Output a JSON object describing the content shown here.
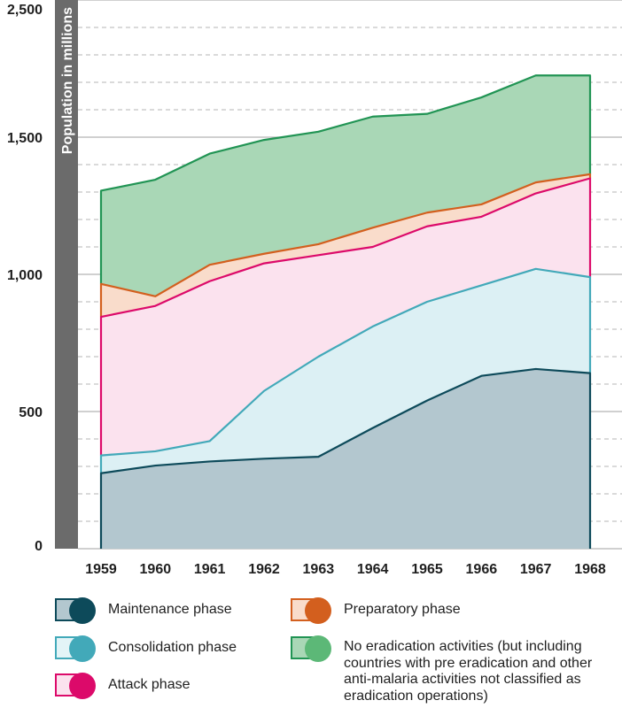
{
  "chart_data": {
    "type": "area",
    "ylabel": "Population in millions",
    "xlabel": "",
    "categories": [
      "1959",
      "1960",
      "1961",
      "1962",
      "1963",
      "1964",
      "1965",
      "1966",
      "1967",
      "1968"
    ],
    "yticks": [
      {
        "value": 0,
        "label": "0"
      },
      {
        "value": 500,
        "label": "500"
      },
      {
        "value": 1000,
        "label": "1,000"
      },
      {
        "value": 1500,
        "label": "1,500"
      },
      {
        "value": 2500,
        "label": "2,500"
      }
    ],
    "ylim": [
      0,
      2000
    ],
    "grid": true,
    "stacked_cumulative": true,
    "series": [
      {
        "name": "Maintenance phase",
        "key": "maintenance",
        "values": [
          275,
          303,
          318,
          328,
          335,
          440,
          540,
          630,
          655,
          640
        ],
        "line": "#0d4a5a",
        "fill": "#b3c7cf",
        "swatch_fill": "#b3c7cf",
        "dot": "#0d4a5a"
      },
      {
        "name": "Consolidation phase",
        "key": "consolidation",
        "values": [
          340,
          355,
          392,
          575,
          700,
          810,
          900,
          960,
          1020,
          990
        ],
        "line": "#42a9b9",
        "fill": "#dcf0f4",
        "swatch_fill": "#e3f4f7",
        "dot": "#42a9b9"
      },
      {
        "name": "Attack phase",
        "key": "attack",
        "values": [
          845,
          885,
          975,
          1040,
          1070,
          1100,
          1175,
          1210,
          1295,
          1350
        ],
        "line": "#dc0a6a",
        "fill": "#fbe2ee",
        "swatch_fill": "#fbe2ee",
        "dot": "#dc0a6a"
      },
      {
        "name": "Preparatory phase",
        "key": "preparatory",
        "values": [
          965,
          920,
          1035,
          1075,
          1110,
          1170,
          1225,
          1255,
          1335,
          1365
        ],
        "line": "#d35f1e",
        "fill": "#f9dccb",
        "swatch_fill": "#f9dccb",
        "dot": "#d35f1e"
      },
      {
        "name": "No eradication activities (but including countries with pre eradication and other anti-malaria activities not classified as eradication operations)",
        "key": "none",
        "values": [
          1305,
          1345,
          1440,
          1490,
          1520,
          1575,
          1585,
          1645,
          1725,
          1725
        ],
        "line": "#219454",
        "fill": "#a9d7b6",
        "swatch_fill": "#a9d7b6",
        "dot": "#5cb877"
      }
    ]
  },
  "legend": {
    "maintenance": "Maintenance phase",
    "consolidation": "Consolidation phase",
    "attack": "Attack phase",
    "preparatory": "Preparatory phase",
    "none_lines": [
      "No eradication activities (but including",
      "countries with pre eradication and other",
      "anti-malaria activities not classified as",
      "eradication operations)"
    ]
  },
  "colors": {
    "gridline": "#b5b5b5",
    "axis_band": "#6b6b6b"
  }
}
